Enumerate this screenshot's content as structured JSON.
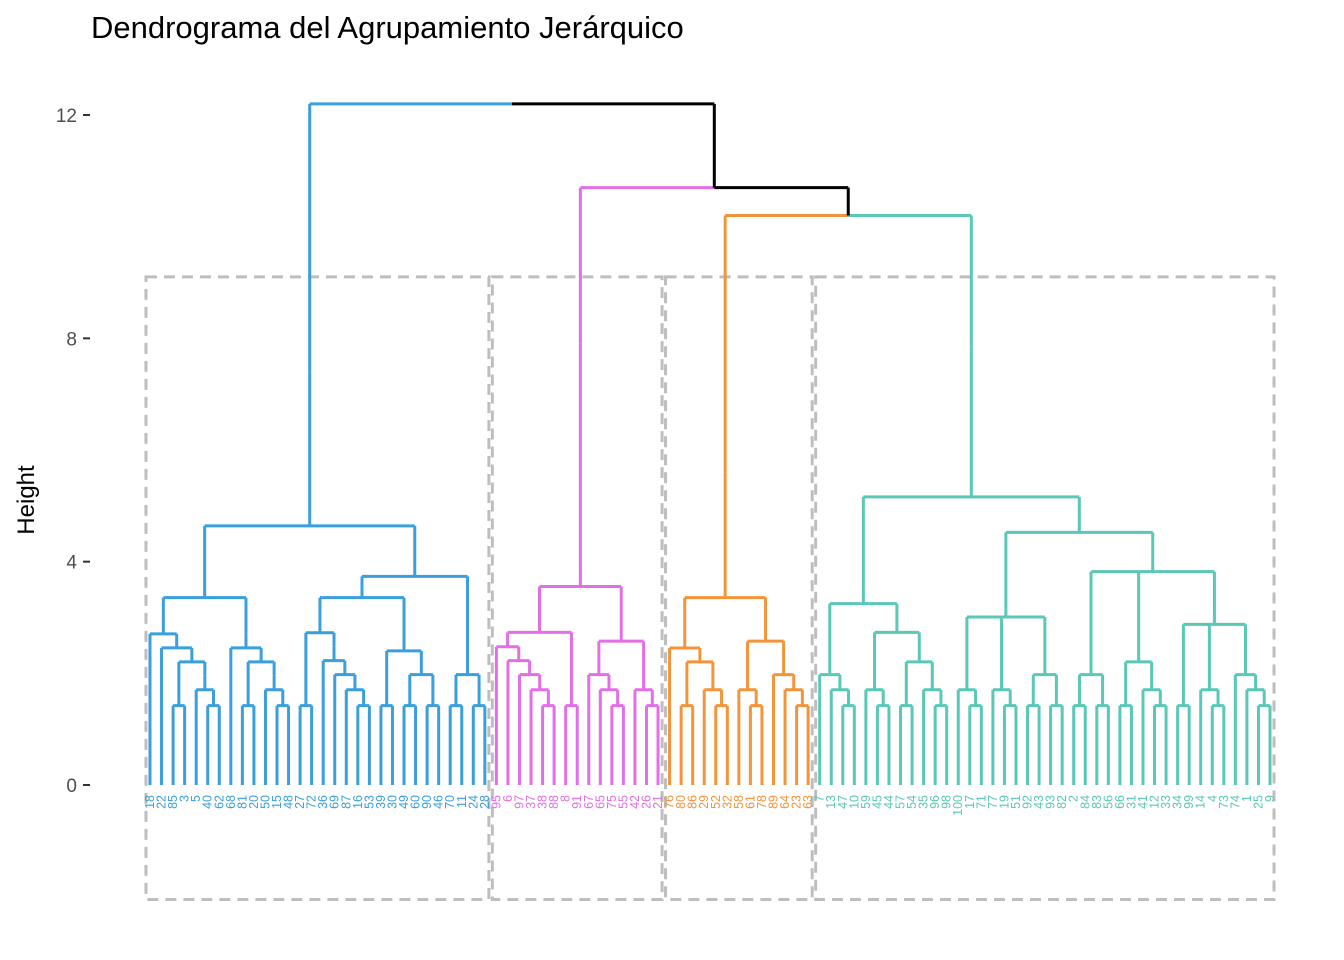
{
  "chart_data": {
    "type": "dendrogram",
    "title": "Dendrograma del Agrupamiento Jerárquico",
    "xlabel": "",
    "ylabel": "Height",
    "ylim": [
      -2.05,
      12.45
    ],
    "yticks": [
      0,
      4,
      8,
      12
    ],
    "cluster_colors": [
      "#3a9fdb",
      "#e36fe6",
      "#f4943a",
      "#5ac8b6"
    ],
    "root_color": "#000000",
    "box_color": "#bebebe",
    "merge_heights": {
      "root": 12.2,
      "second": 10.7,
      "third": 10.2
    },
    "clusters": [
      {
        "color": "#3a9fdb",
        "leaves": [
          "18",
          "22",
          "85",
          "3",
          "5",
          "40",
          "62",
          "68",
          "81",
          "20",
          "50",
          "15",
          "48",
          "27",
          "72",
          "36",
          "69",
          "87",
          "16",
          "53",
          "39",
          "30",
          "49",
          "60",
          "90",
          "46",
          "70",
          "11",
          "24",
          "28"
        ],
        "tree": [
          [
            [
              [
                18,
                [
                  22,
                  [
                    [
                      85,
                      3
                    ],
                    [
                      [
                        5,
                        [
                          40,
                          62
                        ]
                      ]
                    ]
                  ]
                ]
              ]
            ],
            [
              [
                68,
                [
                  [
                    81,
                    20
                  ],
                  [
                    [
                      50,
                      [
                        15,
                        48
                      ]
                    ]
                  ]
                ]
              ]
            ]
          ],
          [
            [
              [
                [
                  27,
                  72
                ],
                [
                  [
                    36,
                    [
                      69,
                      [
                        87,
                        [
                          16,
                          53
                        ]
                      ]
                    ]
                  ]
                ]
              ],
              [
                [
                  39,
                  30
                ],
                [
                  [
                    49,
                    60
                  ],
                  [
                    90,
                    46
                  ]
                ]
              ]
            ],
            [
              [
                70,
                11
              ],
              [
                24,
                28
              ]
            ]
          ]
        ]
      },
      {
        "color": "#e36fe6",
        "leaves": [
          "95",
          "6",
          "97",
          "37",
          "38",
          "88",
          "8",
          "91",
          "67",
          "65",
          "75",
          "55",
          "42",
          "26",
          "21"
        ],
        "tree": [
          [
            [
              95,
              [
                6,
                [
                  97,
                  [
                    37,
                    [
                      38,
                      88
                    ]
                  ]
                ]
              ]
            ],
            [
              8,
              91
            ]
          ],
          [
            [
              67,
              [
                65,
                [
                  75,
                  55
                ]
              ]
            ],
            [
              42,
              [
                26,
                21
              ]
            ]
          ]
        ]
      },
      {
        "color": "#f4943a",
        "leaves": [
          "76",
          "80",
          "86",
          "29",
          "52",
          "32",
          "58",
          "61",
          "78",
          "89",
          "64",
          "23",
          "63"
        ],
        "tree": [
          [
            76,
            [
              [
                80,
                86
              ],
              [
                29,
                [
                  52,
                  32
                ]
              ]
            ]
          ],
          [
            [
              58,
              [
                61,
                78
              ]
            ],
            [
              89,
              [
                64,
                [
                  23,
                  63
                ]
              ]
            ]
          ]
        ]
      },
      {
        "color": "#5ac8b6",
        "leaves": [
          "7",
          "13",
          "47",
          "10",
          "59",
          "45",
          "44",
          "57",
          "54",
          "35",
          "96",
          "98",
          "100",
          "17",
          "71",
          "77",
          "19",
          "51",
          "92",
          "43",
          "93",
          "82",
          "2",
          "84",
          "83",
          "56",
          "66",
          "31",
          "41",
          "12",
          "33",
          "34",
          "99",
          "14",
          "4",
          "73",
          "74",
          "1",
          "25",
          "9"
        ],
        "tree": [
          [
            [
              7,
              [
                13,
                [
                  47,
                  10
                ]
              ]
            ],
            [
              [
                59,
                [
                  45,
                  44
                ]
              ],
              [
                [
                  57,
                  54
                ],
                [
                  35,
                  [
                    96,
                    98
                  ]
                ]
              ]
            ]
          ],
          [
            [
              [
                100,
                [
                  17,
                  71
                ]
              ],
              [
                77,
                [
                  19,
                  51
                ]
              ],
              [
                [
                  92,
                  43
                ],
                [
                  93,
                  82
                ]
              ]
            ],
            [
              [
                [
                  2,
                  84
                ],
                [
                  83,
                  56
                ]
              ],
              [
                [
                  66,
                  31
                ],
                [
                  41,
                  [
                    12,
                    33
                  ]
                ]
              ],
              [
                [
                  34,
                  99
                ],
                [
                  14,
                  [
                    4,
                    73
                  ]
                ],
                [
                  74,
                  [
                    1,
                    [
                      25,
                      9
                    ]
                  ]
                ]
              ]
            ]
          ]
        ]
      }
    ]
  }
}
